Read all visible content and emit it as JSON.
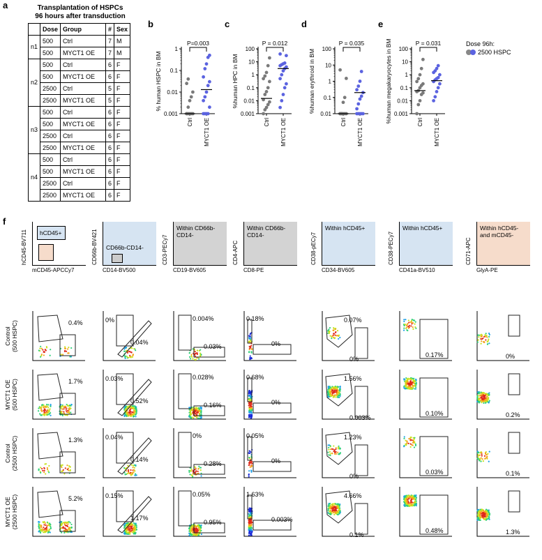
{
  "panel_a": {
    "label": "a",
    "title_line1": "Transplantation of HSPCs",
    "title_line2": "96 hours after transduction",
    "headers": [
      "",
      "Dose",
      "Group",
      "#",
      "Sex"
    ],
    "groups": [
      {
        "name": "n1",
        "rows": [
          [
            "500",
            "Ctrl",
            "7",
            "M"
          ],
          [
            "500",
            "MYCT1 OE",
            "7",
            "M"
          ]
        ]
      },
      {
        "name": "n2",
        "rows": [
          [
            "500",
            "Ctrl",
            "6",
            "F"
          ],
          [
            "500",
            "MYCT1 OE",
            "6",
            "F"
          ],
          [
            "2500",
            "Ctrl",
            "5",
            "F"
          ],
          [
            "2500",
            "MYCT1 OE",
            "5",
            "F"
          ]
        ]
      },
      {
        "name": "n3",
        "rows": [
          [
            "500",
            "Ctrl",
            "6",
            "F"
          ],
          [
            "500",
            "MYCT1 OE",
            "6",
            "F"
          ],
          [
            "2500",
            "Ctrl",
            "6",
            "F"
          ],
          [
            "2500",
            "MYCT1 OE",
            "6",
            "F"
          ]
        ]
      },
      {
        "name": "n4",
        "rows": [
          [
            "500",
            "Ctrl",
            "6",
            "F"
          ],
          [
            "500",
            "MYCT1 OE",
            "6",
            "F"
          ],
          [
            "2500",
            "Ctrl",
            "6",
            "F"
          ],
          [
            "2500",
            "MYCT1 OE",
            "6",
            "F"
          ]
        ]
      }
    ]
  },
  "legend": {
    "title": "Dose 96h:",
    "grey": "#888888",
    "blue": "#5b63e0",
    "entry": "2500 HSPC"
  },
  "chart_data": [
    {
      "type": "scatter",
      "label": "b",
      "ylabel": "% human  HSPC in BM",
      "pvalue": "P=0.003",
      "categories": [
        "Ctrl",
        "MYCT1 OE"
      ],
      "yscale": "log",
      "ylim": [
        0.001,
        1
      ],
      "yticks": [
        "0.001",
        "0.01",
        "0.1",
        "1"
      ],
      "series": [
        {
          "category": "Ctrl",
          "values": [
            0.001,
            0.001,
            0.001,
            0.001,
            0.001,
            0.001,
            0.002,
            0.004,
            0.006,
            0.01,
            0.025,
            0.04
          ]
        },
        {
          "category": "MYCT1 OE",
          "values": [
            0.001,
            0.001,
            0.001,
            0.001,
            0.002,
            0.004,
            0.006,
            0.01,
            0.02,
            0.03,
            0.05,
            0.12,
            0.2,
            0.4,
            0.5
          ]
        }
      ],
      "medians": [
        0.001,
        0.013
      ]
    },
    {
      "type": "scatter",
      "label": "c",
      "ylabel": "%human  HPC in BM",
      "pvalue": "P = 0.012",
      "categories": [
        "Ctrl",
        "MYCT1 OE"
      ],
      "yscale": "log",
      "ylim": [
        0.001,
        100
      ],
      "yticks": [
        "0.001",
        "0.01",
        "0.1",
        "1",
        "10",
        "100"
      ],
      "series": [
        {
          "category": "Ctrl",
          "values": [
            0.001,
            0.002,
            0.003,
            0.005,
            0.008,
            0.012,
            0.03,
            0.05,
            0.1,
            0.3,
            0.5,
            0.8,
            1.5,
            5,
            20
          ]
        },
        {
          "category": "MYCT1 OE",
          "values": [
            0.003,
            0.01,
            0.03,
            0.1,
            0.2,
            0.5,
            1,
            2,
            3,
            4,
            5,
            6,
            7,
            8,
            30,
            40
          ]
        }
      ],
      "medians": [
        0.015,
        3
      ]
    },
    {
      "type": "scatter",
      "label": "d",
      "ylabel": "%human erythroid in BM",
      "pvalue": "P = 0.035",
      "categories": [
        "Ctrl",
        "MYCT1 OE"
      ],
      "yscale": "log",
      "ylim": [
        0.01,
        100
      ],
      "yticks": [
        "0.01",
        "0.1",
        "1",
        "10",
        "100"
      ],
      "series": [
        {
          "category": "Ctrl",
          "values": [
            0.01,
            0.01,
            0.01,
            0.01,
            0.01,
            0.01,
            0.01,
            0.05,
            0.1,
            1.5,
            5
          ]
        },
        {
          "category": "MYCT1 OE",
          "values": [
            0.01,
            0.01,
            0.01,
            0.01,
            0.01,
            0.02,
            0.04,
            0.08,
            0.12,
            0.2,
            0.3,
            0.5,
            1,
            4
          ]
        }
      ],
      "medians": [
        0.01,
        0.2
      ]
    },
    {
      "type": "scatter",
      "label": "e",
      "ylabel": "%human megakaryocytes in BM",
      "pvalue": "P = 0.031",
      "categories": [
        "Ctrl",
        "MYCT1 OE"
      ],
      "yscale": "log",
      "ylim": [
        0.001,
        100
      ],
      "yticks": [
        "0.001",
        "0.01",
        "0.1",
        "1",
        "10",
        "100"
      ],
      "series": [
        {
          "category": "Ctrl",
          "values": [
            0.001,
            0.005,
            0.01,
            0.03,
            0.04,
            0.05,
            0.06,
            0.1,
            0.15,
            0.2,
            0.3,
            0.5,
            1,
            3,
            15
          ]
        },
        {
          "category": "MYCT1 OE",
          "values": [
            0.01,
            0.02,
            0.05,
            0.1,
            0.2,
            0.3,
            0.4,
            0.5,
            0.6,
            1,
            1.5,
            2,
            3,
            5
          ]
        }
      ],
      "medians": [
        0.06,
        0.35
      ]
    }
  ],
  "panel_f": {
    "label": "f",
    "gating": [
      {
        "ylabel": "hCD45-BV711",
        "xlabel": "mCD45-APCCy7",
        "title": "",
        "gate": "hCD45+",
        "bg": "#ffffff"
      },
      {
        "ylabel": "CD66b-BV421",
        "xlabel": "CD14-BV500",
        "title": "",
        "gate": "CD66b-CD14-",
        "bg": "#d6e4f2"
      },
      {
        "ylabel": "CD3-PECy7",
        "xlabel": "CD19-BV605",
        "title": "Within CD66b-\nCD14-",
        "gate": "",
        "bg": "#d3d3d3"
      },
      {
        "ylabel": "CD4-APC",
        "xlabel": "CD8-PE",
        "title": "Within CD66b-\nCD14-",
        "gate": "",
        "bg": "#d3d3d3"
      },
      {
        "ylabel": "CD38-pECy7",
        "xlabel": "CD34-BV605",
        "title": "Within hCD45+",
        "gate": "",
        "bg": "#d6e4f2"
      },
      {
        "ylabel": "CD38-PECy7",
        "xlabel": "CD41a-BV510",
        "title": "Within hCD45+",
        "gate": "",
        "bg": "#d6e4f2"
      },
      {
        "ylabel": "CD71-APC",
        "xlabel": "GlyA-PE",
        "title": "Within hCD45-\nand mCD45-",
        "gate": "",
        "bg": "#f6dccb"
      }
    ],
    "rows": [
      {
        "label": "Control\n(500 HSPC)",
        "pcts": [
          [
            "0.4%"
          ],
          [
            "0%",
            "0.04%"
          ],
          [
            "0.004%",
            "0.03%"
          ],
          [
            "0.18%",
            "0%"
          ],
          [
            "0.07%",
            "0%"
          ],
          [
            "0.17%"
          ],
          [
            "0%"
          ]
        ]
      },
      {
        "label": "MYCT1 OE\n(500 HSPC)",
        "pcts": [
          [
            "1.7%"
          ],
          [
            "0.03%",
            "0.52%"
          ],
          [
            "0.028%",
            "0.16%"
          ],
          [
            "0.68%",
            "0%"
          ],
          [
            "1.56%",
            "0.003%"
          ],
          [
            "0.10%"
          ],
          [
            "0.2%"
          ]
        ]
      },
      {
        "label": "Control\n(2500 HSPC)",
        "pcts": [
          [
            "1.3%"
          ],
          [
            "0.04%",
            "0.14%"
          ],
          [
            "0%",
            "0.28%"
          ],
          [
            "0.05%",
            "0%"
          ],
          [
            "1.23%",
            "0%"
          ],
          [
            "0.03%"
          ],
          [
            "0.1%"
          ]
        ]
      },
      {
        "label": "MYCT1 OE\n(2500 HSPC)",
        "pcts": [
          [
            "5.2%"
          ],
          [
            "0.15%",
            "1.17%"
          ],
          [
            "0.05%",
            "0.95%"
          ],
          [
            "1.63%",
            "0.003%"
          ],
          [
            "4.66%",
            "0.1%"
          ],
          [
            "0.48%"
          ],
          [
            "1.3%"
          ]
        ]
      }
    ]
  }
}
